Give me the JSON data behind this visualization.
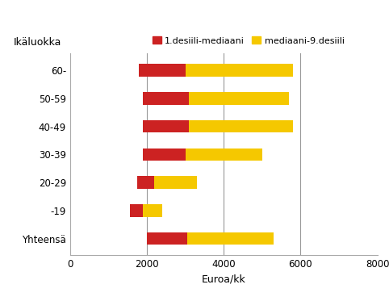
{
  "categories": [
    "Yhteensä",
    "-19",
    "20-29",
    "30-39",
    "40-49",
    "50-59",
    "60-"
  ],
  "ylabel_top": "Ikäluokka",
  "xlabel": "Euroa/kk",
  "decile1": [
    2000,
    1550,
    1750,
    1900,
    1900,
    1900,
    1800
  ],
  "median": [
    3050,
    1900,
    2200,
    3000,
    3100,
    3100,
    3000
  ],
  "decile9": [
    5300,
    2400,
    3300,
    5000,
    5800,
    5700,
    5800
  ],
  "color_red": "#cc2222",
  "color_yellow": "#f5c800",
  "legend_red": "1.desiili-mediaani",
  "legend_yellow": "mediaani-9.desiili",
  "xlim": [
    0,
    8000
  ],
  "xticks": [
    0,
    2000,
    4000,
    6000,
    8000
  ],
  "grid_lines": [
    2000,
    4000,
    6000
  ],
  "background_color": "#ffffff",
  "bar_height": 0.45
}
